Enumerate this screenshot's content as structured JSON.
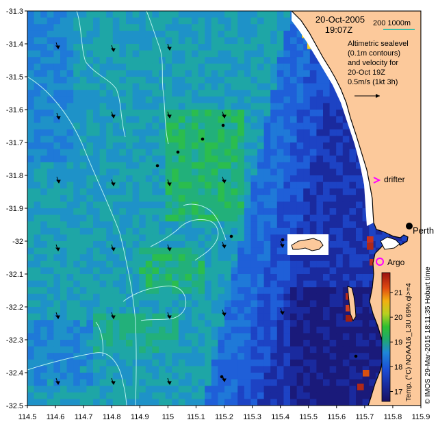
{
  "header": {
    "date": "20-Oct-2005",
    "time": "19:07Z",
    "depth_scale_label": "200  1000m"
  },
  "altimetry_note": {
    "lines": [
      "Altimetric sealevel",
      "(0.1m contours)",
      "and velocity for",
      "20-Oct 19Z",
      "0.5m/s (1kt 3h)"
    ]
  },
  "labels": {
    "drifter": "drifter",
    "perth": "Perth",
    "argo": "Argo"
  },
  "colorbar": {
    "label": "Temp. (°C) NOAA16_L3U 69% ql>=4",
    "ticks": [
      17,
      18,
      19,
      20,
      21
    ],
    "range": [
      16.6,
      21.8
    ]
  },
  "credit": "© IMOS 29-Mar-2015 18:11:35 Hobart time",
  "map": {
    "lon_range": [
      114.5,
      115.9
    ],
    "lat_range": [
      -32.5,
      -31.3
    ],
    "x_ticks": [
      "114.5",
      "114.6",
      "114.7",
      "114.8",
      "114.9",
      "115",
      "115.1",
      "115.2",
      "115.3",
      "115.4",
      "115.5",
      "115.6",
      "115.7",
      "115.8",
      "115.9"
    ],
    "y_ticks": [
      "-31.3",
      "-31.4",
      "-31.5",
      "-31.6",
      "-31.7",
      "-31.8",
      "-31.9",
      "-32",
      "-32.1",
      "-32.2",
      "-32.3",
      "-32.4",
      "-32.5"
    ],
    "land_color": "#fcc99b",
    "contour_color": "#b7f0f0",
    "drifter_color": "#ff00ff",
    "argo_color": "#ff00ff"
  }
}
